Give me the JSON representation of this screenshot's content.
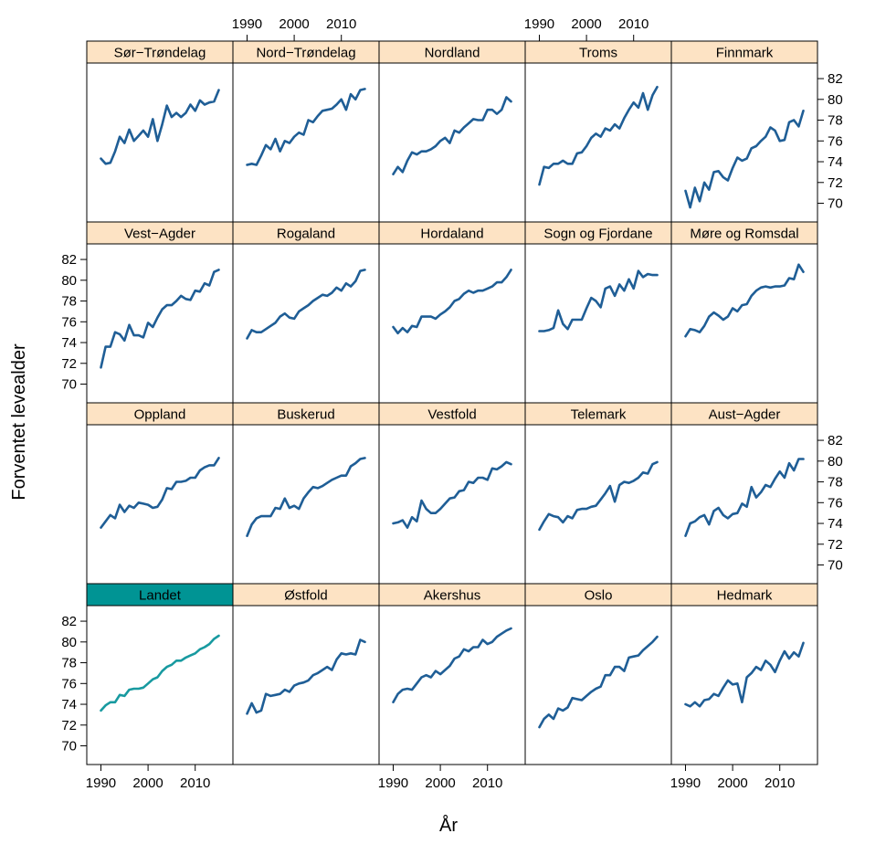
{
  "chart_data": {
    "type": "line",
    "xlabel": "År",
    "ylabel": "Forventet levealder",
    "xlim": [
      1987,
      2018
    ],
    "ylim": [
      68.2,
      83.5
    ],
    "x_ticks": [
      1990,
      2000,
      2010
    ],
    "y_ticks": [
      70,
      72,
      74,
      76,
      78,
      80,
      82
    ],
    "x_tick_labels": [
      "1990",
      "2000",
      "2010"
    ],
    "y_tick_labels": [
      "70",
      "72",
      "74",
      "76",
      "78",
      "80",
      "82"
    ],
    "colors": {
      "line": "#1f5e96",
      "highlight_line": "#189aa0",
      "strip": "#fde3c4",
      "highlight_strip": "#009494"
    },
    "layout_order": [
      [
        "Sør−Trøndelag",
        "Nord−Trøndelag",
        "Nordland",
        "Troms",
        "Finnmark"
      ],
      [
        "Vest−Agder",
        "Rogaland",
        "Hordaland",
        "Sogn og Fjordane",
        "Møre og Romsdal"
      ],
      [
        "Oppland",
        "Buskerud",
        "Vestfold",
        "Telemark",
        "Aust−Agder"
      ],
      [
        "Landet",
        "Østfold",
        "Akershus",
        "Oslo",
        "Hedmark"
      ]
    ],
    "highlight_panel": "Landet",
    "x": [
      1990,
      1991,
      1992,
      1993,
      1994,
      1995,
      1996,
      1997,
      1998,
      1999,
      2000,
      2001,
      2002,
      2003,
      2004,
      2005,
      2006,
      2007,
      2008,
      2009,
      2010,
      2011,
      2012,
      2013,
      2014,
      2015
    ],
    "series": [
      {
        "name": "Sør−Trøndelag",
        "values": [
          74.3,
          73.8,
          73.9,
          75.0,
          76.4,
          75.8,
          77.1,
          76.0,
          76.5,
          77.0,
          76.4,
          78.1,
          76.0,
          77.6,
          79.4,
          78.3,
          78.7,
          78.3,
          78.7,
          79.5,
          78.9,
          79.9,
          79.5,
          79.7,
          79.8,
          80.9
        ]
      },
      {
        "name": "Nord−Trøndelag",
        "values": [
          73.7,
          73.8,
          73.7,
          74.6,
          75.6,
          75.2,
          76.2,
          75.0,
          76.0,
          75.8,
          76.4,
          76.8,
          76.6,
          78.0,
          77.8,
          78.4,
          78.9,
          79.0,
          79.1,
          79.5,
          80.0,
          79.0,
          80.5,
          80.0,
          80.9,
          81.0
        ]
      },
      {
        "name": "Nordland",
        "values": [
          72.8,
          73.5,
          73.0,
          74.1,
          74.9,
          74.7,
          75.0,
          75.0,
          75.2,
          75.5,
          76.0,
          76.3,
          75.8,
          77.0,
          76.8,
          77.3,
          77.7,
          78.1,
          78.0,
          78.0,
          79.0,
          79.0,
          78.6,
          79.0,
          80.2,
          79.8
        ]
      },
      {
        "name": "Troms",
        "values": [
          71.8,
          73.5,
          73.4,
          73.8,
          73.8,
          74.1,
          73.8,
          73.8,
          74.8,
          74.9,
          75.5,
          76.3,
          76.7,
          76.4,
          77.2,
          77.0,
          77.6,
          77.2,
          78.2,
          79.0,
          79.7,
          79.2,
          80.6,
          79.0,
          80.4,
          81.2
        ]
      },
      {
        "name": "Finnmark",
        "values": [
          71.2,
          69.6,
          71.5,
          70.2,
          72.0,
          71.3,
          73.0,
          73.1,
          72.5,
          72.2,
          73.4,
          74.4,
          74.1,
          74.3,
          75.3,
          75.5,
          76.0,
          76.4,
          77.3,
          77.0,
          76.0,
          76.1,
          77.8,
          78.0,
          77.4,
          78.9
        ]
      },
      {
        "name": "Vest−Agder",
        "values": [
          71.6,
          73.6,
          73.6,
          75.0,
          74.8,
          74.2,
          75.7,
          74.7,
          74.7,
          74.5,
          75.9,
          75.5,
          76.4,
          77.2,
          77.6,
          77.6,
          78.0,
          78.5,
          78.2,
          78.1,
          79.0,
          78.9,
          79.7,
          79.5,
          80.8,
          81.0
        ]
      },
      {
        "name": "Rogaland",
        "values": [
          74.4,
          75.2,
          75.0,
          75.0,
          75.3,
          75.6,
          75.9,
          76.5,
          76.8,
          76.4,
          76.3,
          77.0,
          77.3,
          77.6,
          78.0,
          78.3,
          78.6,
          78.5,
          78.8,
          79.3,
          79.0,
          79.7,
          79.4,
          79.9,
          80.9,
          81.0
        ]
      },
      {
        "name": "Hordaland",
        "values": [
          75.5,
          74.9,
          75.4,
          75.0,
          75.6,
          75.5,
          76.5,
          76.5,
          76.5,
          76.3,
          76.7,
          77.0,
          77.4,
          78.0,
          78.2,
          78.7,
          79.0,
          78.8,
          79.0,
          79.0,
          79.2,
          79.4,
          79.8,
          79.8,
          80.3,
          81.0
        ]
      },
      {
        "name": "Sogn og Fjordane",
        "values": [
          75.1,
          75.1,
          75.2,
          75.4,
          77.1,
          75.8,
          75.3,
          76.2,
          76.2,
          76.2,
          77.3,
          78.3,
          78.0,
          77.4,
          79.2,
          79.4,
          78.5,
          79.6,
          79.0,
          80.1,
          79.2,
          80.9,
          80.3,
          80.6,
          80.5,
          80.5
        ]
      },
      {
        "name": "Møre og Romsdal",
        "values": [
          74.6,
          75.3,
          75.2,
          75.0,
          75.6,
          76.5,
          76.9,
          76.6,
          76.2,
          76.5,
          77.3,
          77.0,
          77.6,
          77.7,
          78.5,
          79.0,
          79.3,
          79.4,
          79.3,
          79.4,
          79.4,
          79.5,
          80.2,
          80.1,
          81.5,
          80.8
        ]
      },
      {
        "name": "Oppland",
        "values": [
          73.6,
          74.2,
          74.8,
          74.5,
          75.8,
          75.1,
          75.7,
          75.5,
          76.0,
          75.9,
          75.8,
          75.5,
          75.6,
          76.3,
          77.4,
          77.3,
          78.0,
          78.0,
          78.1,
          78.4,
          78.4,
          79.1,
          79.4,
          79.6,
          79.6,
          80.3
        ]
      },
      {
        "name": "Buskerud",
        "values": [
          72.8,
          73.9,
          74.5,
          74.7,
          74.7,
          74.7,
          75.5,
          75.4,
          76.4,
          75.5,
          75.7,
          75.4,
          76.4,
          77.0,
          77.5,
          77.4,
          77.6,
          77.9,
          78.2,
          78.4,
          78.6,
          78.6,
          79.5,
          79.8,
          80.2,
          80.3
        ]
      },
      {
        "name": "Vestfold",
        "values": [
          74.0,
          74.1,
          74.3,
          73.6,
          74.6,
          74.2,
          76.2,
          75.4,
          75.0,
          75.0,
          75.4,
          75.9,
          76.4,
          76.5,
          77.1,
          77.2,
          78.0,
          77.9,
          78.4,
          78.4,
          78.2,
          79.3,
          79.2,
          79.5,
          79.9,
          79.7
        ]
      },
      {
        "name": "Telemark",
        "values": [
          73.4,
          74.2,
          74.9,
          74.7,
          74.6,
          74.1,
          74.7,
          74.5,
          75.3,
          75.4,
          75.4,
          75.6,
          75.7,
          76.3,
          76.9,
          77.6,
          76.1,
          77.7,
          78.0,
          77.9,
          78.1,
          78.4,
          78.9,
          78.8,
          79.7,
          79.9
        ]
      },
      {
        "name": "Aust−Agder",
        "values": [
          72.8,
          74.0,
          74.2,
          74.6,
          74.8,
          73.9,
          75.2,
          75.5,
          74.8,
          74.5,
          74.9,
          75.0,
          75.9,
          75.6,
          77.5,
          76.5,
          77.0,
          77.7,
          77.5,
          78.3,
          79.0,
          78.4,
          79.8,
          79.1,
          80.2,
          80.2
        ]
      },
      {
        "name": "Landet",
        "values": [
          73.4,
          73.9,
          74.2,
          74.2,
          74.9,
          74.8,
          75.4,
          75.5,
          75.5,
          75.6,
          76.0,
          76.4,
          76.6,
          77.2,
          77.6,
          77.8,
          78.2,
          78.2,
          78.5,
          78.7,
          78.9,
          79.3,
          79.5,
          79.8,
          80.3,
          80.6
        ]
      },
      {
        "name": "Østfold",
        "values": [
          73.1,
          74.1,
          73.2,
          73.4,
          75.0,
          74.8,
          74.9,
          75.0,
          75.4,
          75.2,
          75.8,
          76.0,
          76.1,
          76.3,
          76.8,
          77.0,
          77.3,
          77.6,
          77.3,
          78.3,
          78.9,
          78.8,
          78.9,
          78.8,
          80.2,
          80.0
        ]
      },
      {
        "name": "Akershus",
        "values": [
          74.2,
          75.0,
          75.4,
          75.5,
          75.4,
          76.0,
          76.6,
          76.8,
          76.6,
          77.2,
          76.9,
          77.3,
          77.7,
          78.4,
          78.6,
          79.3,
          79.1,
          79.5,
          79.5,
          80.2,
          79.8,
          80.0,
          80.5,
          80.8,
          81.1,
          81.3
        ]
      },
      {
        "name": "Oslo",
        "values": [
          71.8,
          72.6,
          73.0,
          72.6,
          73.6,
          73.4,
          73.7,
          74.6,
          74.5,
          74.4,
          74.8,
          75.2,
          75.5,
          75.7,
          76.8,
          76.8,
          77.6,
          77.6,
          77.2,
          78.5,
          78.6,
          78.7,
          79.2,
          79.6,
          80.0,
          80.5
        ]
      },
      {
        "name": "Hedmark",
        "values": [
          74.0,
          73.8,
          74.2,
          73.8,
          74.4,
          74.5,
          75.0,
          74.8,
          75.6,
          76.3,
          75.9,
          76.0,
          74.2,
          76.6,
          77.0,
          77.6,
          77.3,
          78.2,
          77.8,
          77.1,
          78.2,
          79.1,
          78.4,
          79.0,
          78.6,
          79.9
        ]
      }
    ]
  }
}
